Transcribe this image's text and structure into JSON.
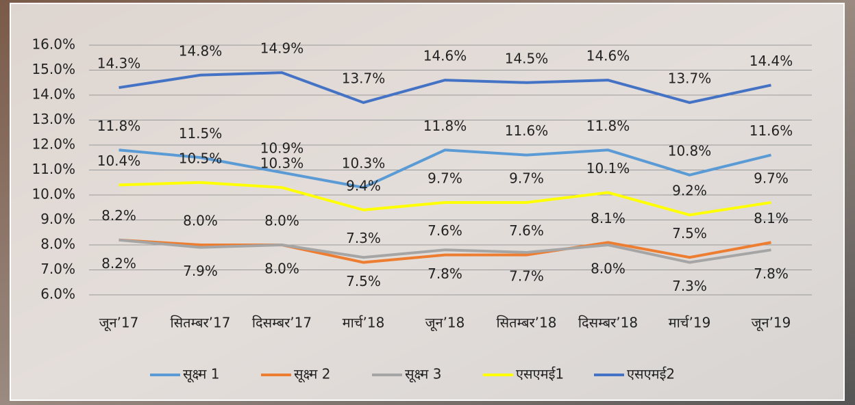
{
  "chart_data": {
    "type": "line",
    "categories": [
      "जून’17",
      "सितम्बर’17",
      "दिसम्बर’17",
      "मार्च’18",
      "जून’18",
      "सितम्बर’18",
      "दिसम्बर’18",
      "मार्च’19",
      "जून’19"
    ],
    "series": [
      {
        "name": "सूक्ष्म 1",
        "color": "#5b9bd5",
        "values": [
          11.8,
          11.5,
          10.9,
          10.3,
          11.8,
          11.6,
          11.8,
          10.8,
          11.6
        ],
        "value_labels": [
          "11.8%",
          "11.5%",
          "10.9%",
          "10.3%",
          "11.8%",
          "11.6%",
          "11.8%",
          "10.8%",
          "11.6%"
        ]
      },
      {
        "name": "सूक्ष्म 2",
        "color": "#ed7d31",
        "values": [
          8.2,
          8.0,
          8.0,
          7.3,
          7.6,
          7.6,
          8.1,
          7.5,
          8.1
        ],
        "value_labels": [
          "8.2%",
          "8.0%",
          "8.0%",
          "7.3%",
          "7.6%",
          "7.6%",
          "8.1%",
          "7.5%",
          "8.1%"
        ]
      },
      {
        "name": "सूक्ष्म 3",
        "color": "#a5a5a5",
        "values": [
          8.2,
          7.9,
          8.0,
          7.5,
          7.8,
          7.7,
          8.0,
          7.3,
          7.8
        ],
        "value_labels": [
          "8.2%",
          "7.9%",
          "8.0%",
          "7.5%",
          "7.8%",
          "7.7%",
          "8.0%",
          "7.3%",
          "7.8%"
        ]
      },
      {
        "name": "एसएमई1",
        "color": "#ffff00",
        "values": [
          10.4,
          10.5,
          10.3,
          9.4,
          9.7,
          9.7,
          10.1,
          9.2,
          9.7
        ],
        "value_labels": [
          "10.4%",
          "10.5%",
          "10.3%",
          "9.4%",
          "9.7%",
          "9.7%",
          "10.1%",
          "9.2%",
          "9.7%"
        ]
      },
      {
        "name": "एसएमई2",
        "color": "#4472c4",
        "values": [
          14.3,
          14.8,
          14.9,
          13.7,
          14.6,
          14.5,
          14.6,
          13.7,
          14.4
        ],
        "value_labels": [
          "14.3%",
          "14.8%",
          "14.9%",
          "13.7%",
          "14.6%",
          "14.5%",
          "14.6%",
          "13.7%",
          "14.4%"
        ]
      }
    ],
    "ylim": [
      6,
      16
    ],
    "yticks": [
      {
        "value": 6,
        "label": "6.0%"
      },
      {
        "value": 7,
        "label": "7.0%"
      },
      {
        "value": 8,
        "label": "8.0%"
      },
      {
        "value": 9,
        "label": "9.0%"
      },
      {
        "value": 10,
        "label": "10.0%"
      },
      {
        "value": 11,
        "label": "11.0%"
      },
      {
        "value": 12,
        "label": "12.0%"
      },
      {
        "value": 13,
        "label": "13.0%"
      },
      {
        "value": 14,
        "label": "14.0%"
      },
      {
        "value": 15,
        "label": "15.0%"
      },
      {
        "value": 16,
        "label": "16.0%"
      }
    ],
    "grid": true,
    "legend": "bottom"
  }
}
